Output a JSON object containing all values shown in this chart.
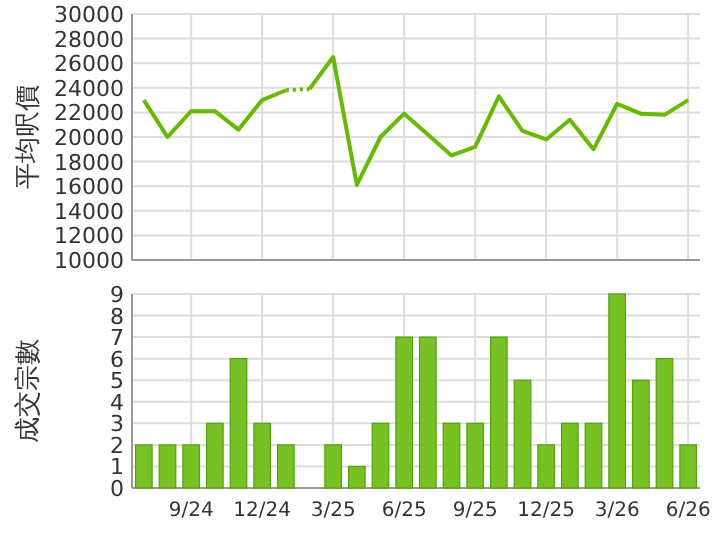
{
  "chart_data": [
    {
      "type": "line",
      "ylabel": "平均呎價",
      "categories": [
        null,
        null,
        null,
        null,
        null,
        null,
        null,
        null,
        null,
        null,
        null,
        null,
        null,
        null,
        null,
        null,
        null,
        null,
        null,
        null,
        null,
        null,
        null,
        null
      ],
      "series": [
        {
          "color": "#66bb00",
          "values": [
            23000,
            20000,
            22100,
            22100,
            20600,
            23000,
            23800,
            null,
            null,
            null,
            null,
            null,
            null,
            null,
            null,
            null,
            null,
            null,
            null,
            null,
            null,
            null,
            null,
            null
          ]
        },
        {
          "color": "#66bb00",
          "line_style": "dotted",
          "values": [
            null,
            null,
            null,
            null,
            null,
            null,
            23800,
            23900,
            null,
            null,
            null,
            null,
            null,
            null,
            null,
            null,
            null,
            null,
            null,
            null,
            null,
            null,
            null,
            null
          ]
        },
        {
          "color": "#66bb00",
          "values": [
            null,
            null,
            null,
            null,
            null,
            null,
            null,
            23900,
            26500,
            16100,
            20000,
            21900,
            20200,
            18500,
            19200,
            23300,
            20500,
            19800,
            21400,
            19000,
            22700,
            21900,
            21800,
            23000
          ]
        }
      ],
      "ylim": [
        10000,
        30000
      ],
      "yticks": [
        10000,
        12000,
        14000,
        16000,
        18000,
        20000,
        22000,
        24000,
        26000,
        28000,
        30000
      ],
      "grid": true,
      "tick_labels": "y"
    },
    {
      "type": "bar",
      "ylabel": "成交宗數",
      "categories": [
        null,
        null,
        "9/24",
        null,
        null,
        "12/24",
        null,
        null,
        "3/25",
        null,
        null,
        "6/25",
        null,
        null,
        "9/25",
        null,
        null,
        "12/25",
        null,
        null,
        "3/26",
        null,
        null,
        "6/26"
      ],
      "values": [
        2,
        2,
        2,
        3,
        6,
        3,
        2,
        0,
        2,
        1,
        3,
        7,
        7,
        3,
        3,
        7,
        5,
        2,
        3,
        3,
        9,
        5,
        6,
        2
      ],
      "color": "#77c222",
      "ylim": [
        0,
        9
      ],
      "yticks": [
        0,
        1,
        2,
        3,
        4,
        5,
        6,
        7,
        8,
        9
      ],
      "grid": true
    }
  ]
}
